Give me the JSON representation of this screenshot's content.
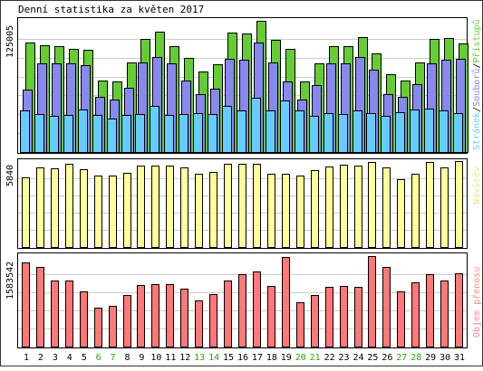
{
  "title": "Denní statistika za květen 2017",
  "colors": {
    "hits": "#66cc33",
    "files": "#8888ee",
    "pages": "#66ccff",
    "visits": "#ffff99",
    "kbytes": "#ff7777",
    "weekend_label": "#22aa00",
    "weekday_label": "#000000",
    "grid": "#cccccc"
  },
  "chart_data": [
    {
      "type": "bar",
      "title": "Denní statistika za květen 2017",
      "ylabel_max": "125005",
      "legend": {
        "order": [
          "Stránek",
          "Souborů",
          "Přístupů"
        ],
        "separator": "/",
        "placement": "right-vertical"
      },
      "categories": [
        "1",
        "2",
        "3",
        "4",
        "5",
        "6",
        "7",
        "8",
        "9",
        "10",
        "11",
        "12",
        "13",
        "14",
        "15",
        "16",
        "17",
        "18",
        "19",
        "20",
        "21",
        "22",
        "23",
        "24",
        "25",
        "26",
        "27",
        "28",
        "29",
        "30",
        "31"
      ],
      "ylim": [
        0,
        125005
      ],
      "series": [
        {
          "name": "Přístupů",
          "color": "#66cc33",
          "values": [
            104000,
            101000,
            100000,
            98000,
            97000,
            68000,
            67000,
            85000,
            107000,
            114000,
            100000,
            89000,
            76000,
            83000,
            113000,
            112000,
            124000,
            106000,
            98000,
            67000,
            84000,
            100000,
            100000,
            109000,
            93000,
            74000,
            68000,
            85000,
            107000,
            108000,
            103000
          ]
        },
        {
          "name": "Souborů",
          "color": "#8888ee",
          "values": [
            59000,
            84000,
            84000,
            84000,
            82000,
            52000,
            50000,
            61000,
            85000,
            90000,
            84000,
            68000,
            55000,
            60000,
            88000,
            87000,
            104000,
            85000,
            67000,
            50000,
            63000,
            84000,
            84000,
            90000,
            78000,
            55000,
            52000,
            64000,
            84000,
            87000,
            88000
          ]
        },
        {
          "name": "Stránek",
          "color": "#66ccff",
          "values": [
            39000,
            36000,
            34000,
            35000,
            40000,
            35000,
            32000,
            35000,
            36000,
            44000,
            35000,
            36000,
            37000,
            36000,
            44000,
            39000,
            51000,
            39000,
            49000,
            39000,
            34000,
            37000,
            36000,
            39000,
            37000,
            34000,
            38000,
            40000,
            41000,
            39000,
            37000
          ]
        }
      ],
      "legend_colors": {
        "Stránek": "#66ccff",
        "Souborů": "#8888ee",
        "Přístupů": "#66cc33"
      }
    },
    {
      "type": "bar",
      "ylabel_max": "5840",
      "legend": {
        "order": [
          "Návštěv"
        ],
        "placement": "right-vertical"
      },
      "categories": [
        "1",
        "2",
        "3",
        "4",
        "5",
        "6",
        "7",
        "8",
        "9",
        "10",
        "11",
        "12",
        "13",
        "14",
        "15",
        "16",
        "17",
        "18",
        "19",
        "20",
        "21",
        "22",
        "23",
        "24",
        "25",
        "26",
        "27",
        "28",
        "29",
        "30",
        "31"
      ],
      "ylim": [
        0,
        5840
      ],
      "series": [
        {
          "name": "Návštěv",
          "color": "#ffff99",
          "values": [
            4750,
            5380,
            5350,
            5680,
            5310,
            4850,
            4850,
            5070,
            5560,
            5530,
            5540,
            5440,
            4980,
            5090,
            5660,
            5650,
            5670,
            4980,
            4970,
            4880,
            5210,
            5500,
            5580,
            5560,
            5760,
            5440,
            4630,
            5000,
            5750,
            5410,
            5840
          ]
        }
      ]
    },
    {
      "type": "bar",
      "ylabel_max": "1583542",
      "legend": {
        "order": [
          "Objem přenosu"
        ],
        "placement": "right-vertical"
      },
      "categories": [
        "1",
        "2",
        "3",
        "4",
        "5",
        "6",
        "7",
        "8",
        "9",
        "10",
        "11",
        "12",
        "13",
        "14",
        "15",
        "16",
        "17",
        "18",
        "19",
        "20",
        "21",
        "22",
        "23",
        "24",
        "25",
        "26",
        "27",
        "28",
        "29",
        "30",
        "31"
      ],
      "ylim": [
        0,
        1583542
      ],
      "series": [
        {
          "name": "Objem přenosu",
          "color": "#ff7777",
          "values": [
            1470000,
            1400000,
            1160000,
            1160000,
            960000,
            680000,
            710000,
            910000,
            1070000,
            1090000,
            1090000,
            1010000,
            800000,
            920000,
            1160000,
            1270000,
            1310000,
            1060000,
            1560000,
            780000,
            910000,
            1040000,
            1060000,
            1040000,
            1583542,
            1390000,
            960000,
            1120000,
            1260000,
            1150000,
            1290000
          ]
        }
      ]
    }
  ],
  "weekend_days": [
    "6",
    "7",
    "13",
    "14",
    "20",
    "21",
    "27",
    "28"
  ]
}
